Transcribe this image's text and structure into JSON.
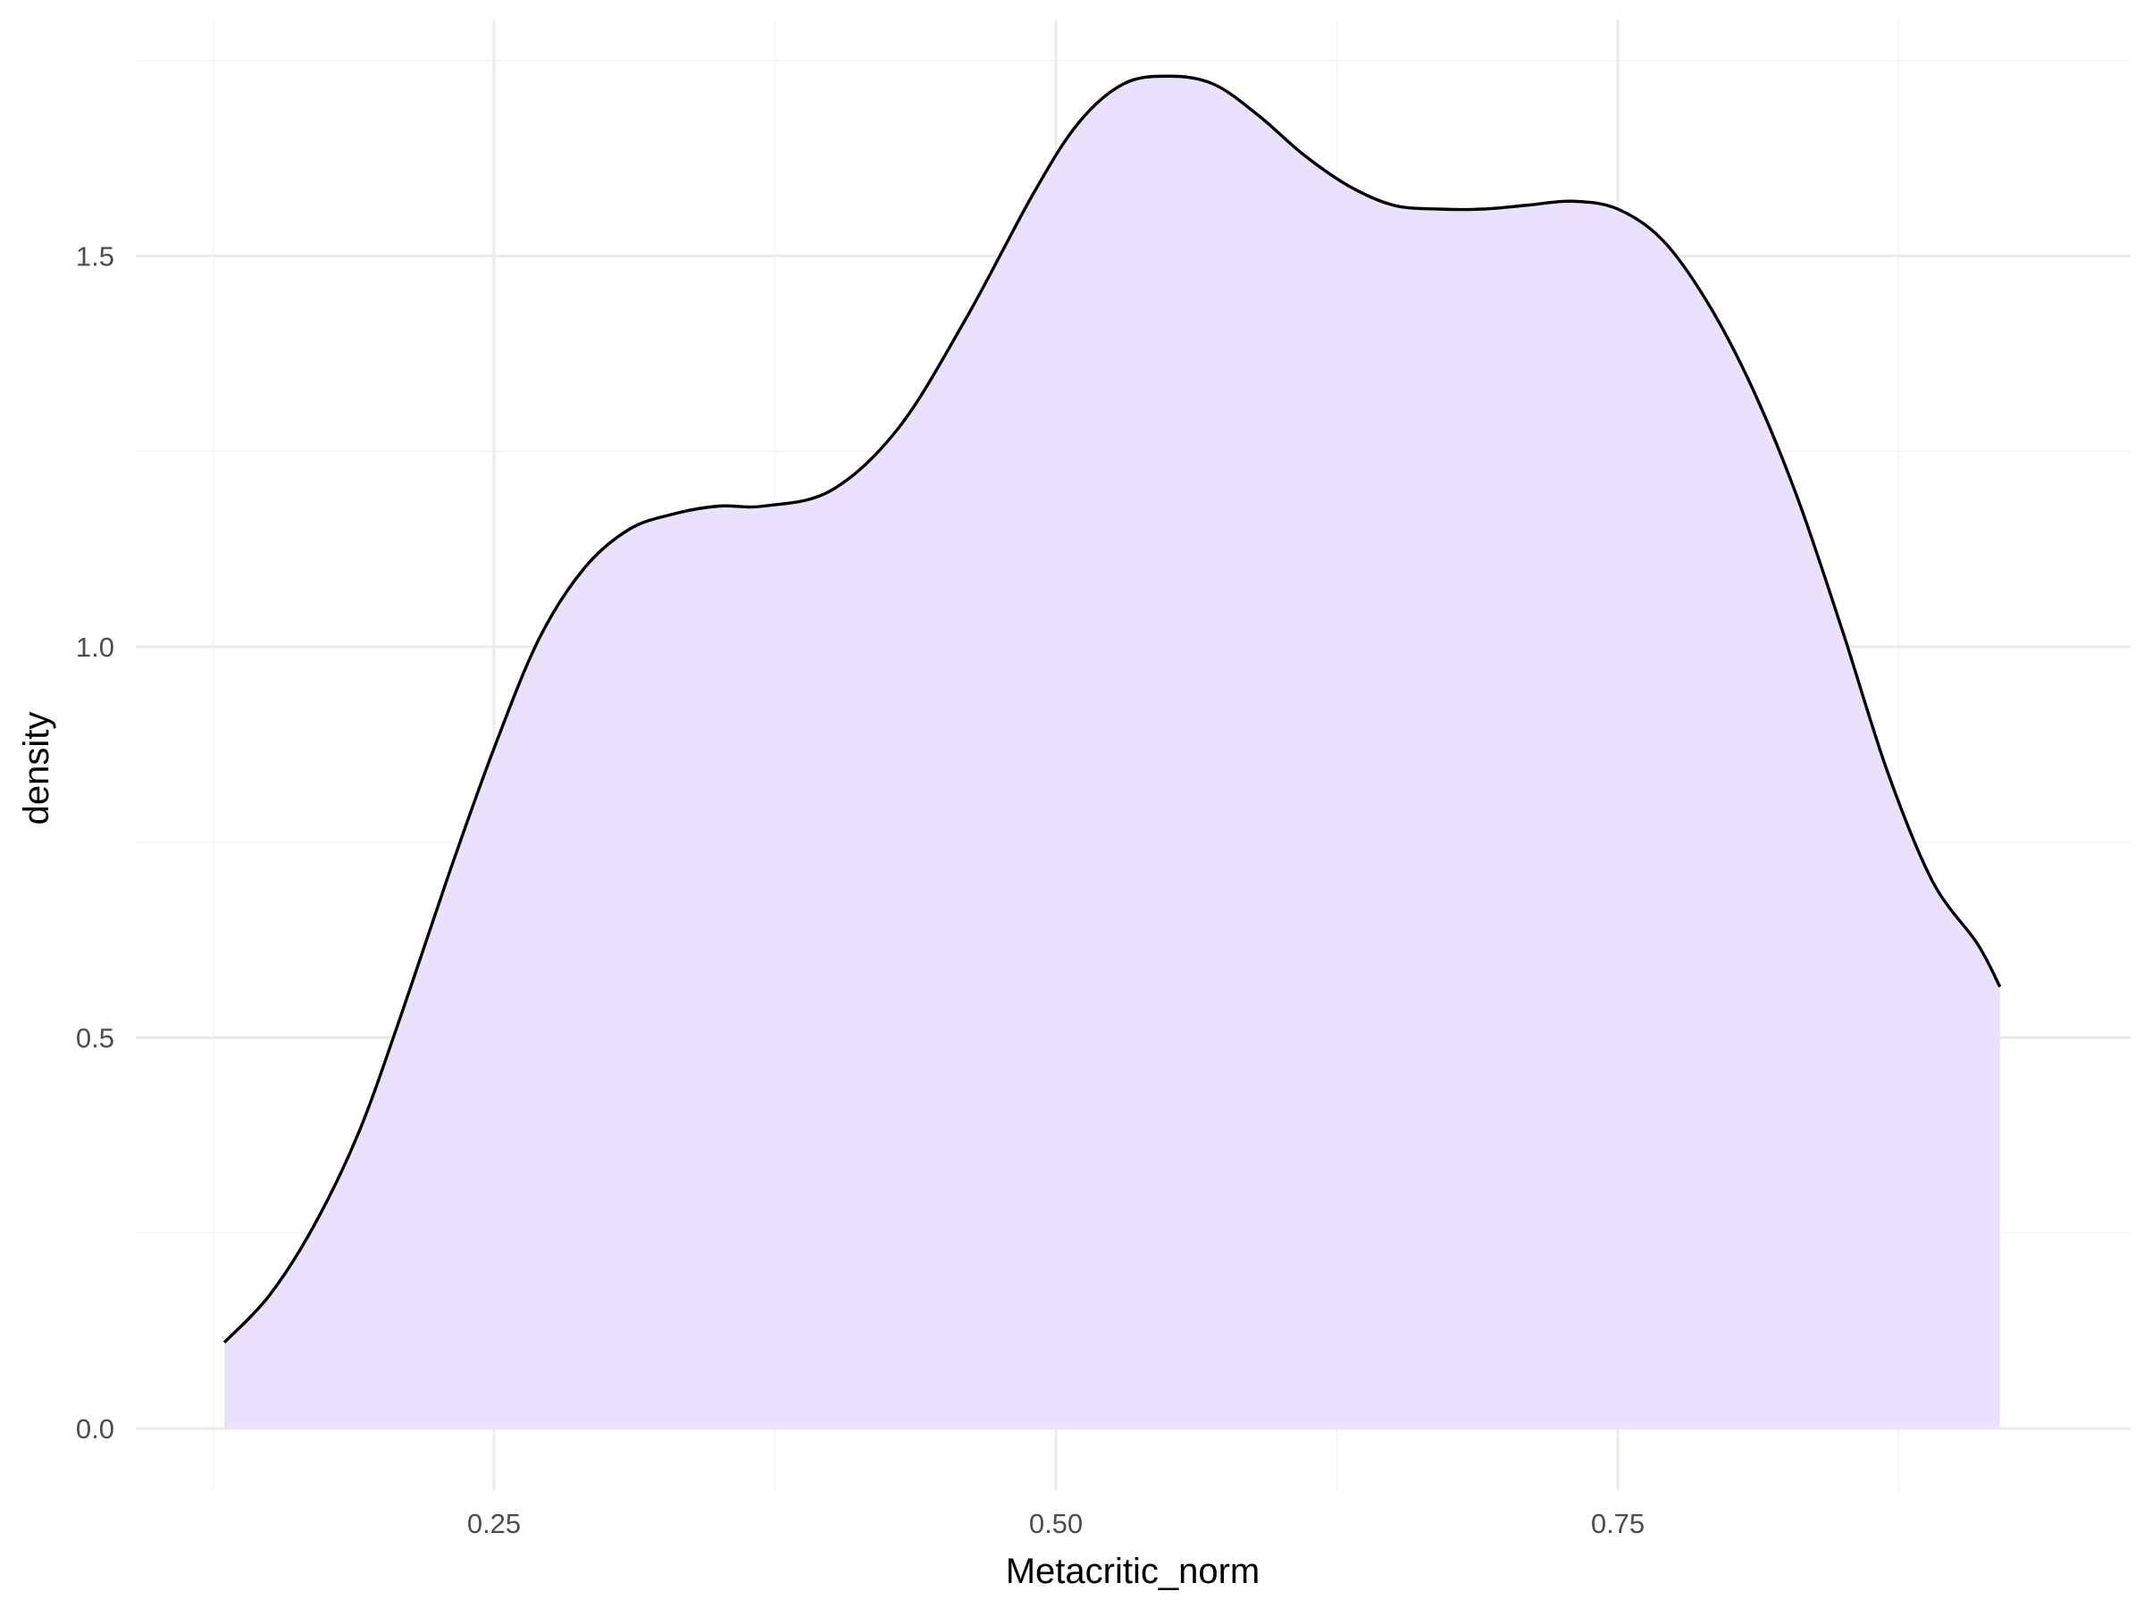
{
  "chart_data": {
    "type": "area",
    "title": "",
    "xlabel": "Metacritic_norm",
    "ylabel": "density",
    "xlim": [
      0.11,
      1.0
    ],
    "ylim": [
      -0.05,
      1.76
    ],
    "x_ticks": [
      0.25,
      0.5,
      0.75
    ],
    "x_tick_labels": [
      "0.25",
      "0.50",
      "0.75"
    ],
    "y_ticks": [
      0.0,
      0.5,
      1.0,
      1.5
    ],
    "y_tick_labels": [
      "0.0",
      "0.5",
      "1.0",
      "1.5"
    ],
    "grid": true,
    "legend": "none",
    "series": [
      {
        "fill_color": "#e8e0fc",
        "line_color": "#000000",
        "x": [
          0.13,
          0.15,
          0.17,
          0.19,
          0.21,
          0.23,
          0.25,
          0.27,
          0.29,
          0.31,
          0.33,
          0.35,
          0.37,
          0.4,
          0.43,
          0.46,
          0.49,
          0.51,
          0.53,
          0.55,
          0.57,
          0.59,
          0.61,
          0.63,
          0.65,
          0.67,
          0.69,
          0.71,
          0.73,
          0.75,
          0.77,
          0.79,
          0.81,
          0.83,
          0.85,
          0.87,
          0.89,
          0.91,
          0.92
        ],
        "y": [
          0.11,
          0.17,
          0.26,
          0.38,
          0.54,
          0.71,
          0.87,
          1.01,
          1.1,
          1.15,
          1.17,
          1.18,
          1.18,
          1.2,
          1.28,
          1.42,
          1.58,
          1.67,
          1.72,
          1.73,
          1.72,
          1.68,
          1.63,
          1.59,
          1.565,
          1.56,
          1.56,
          1.565,
          1.57,
          1.56,
          1.52,
          1.44,
          1.33,
          1.19,
          1.02,
          0.84,
          0.7,
          0.62,
          0.565
        ]
      }
    ]
  }
}
